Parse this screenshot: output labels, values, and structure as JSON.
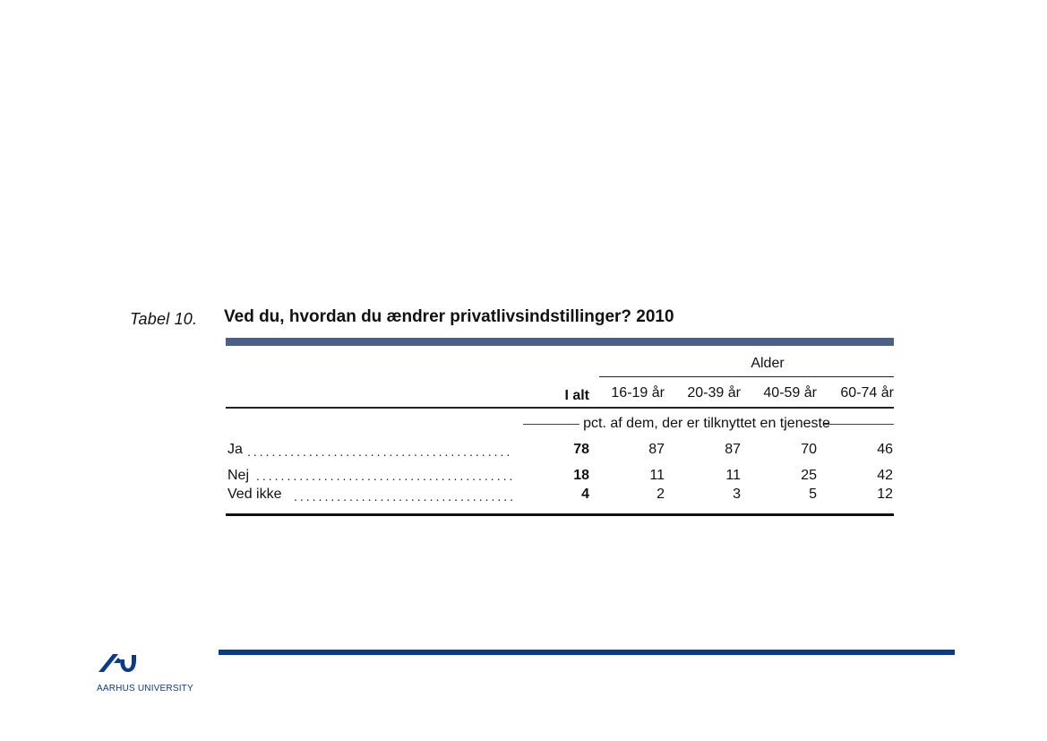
{
  "caption": {
    "label": "Tabel 10.",
    "title": "Ved du, hvordan du ændrer privatlivsindstillinger? 2010"
  },
  "table": {
    "group_header": "Alder",
    "columns": [
      "I alt",
      "16-19 år",
      "20-39 år",
      "40-59 år",
      "60-74 år"
    ],
    "unit_note": "pct. af dem, der er tilknyttet en tjeneste",
    "rows": [
      {
        "label": "Ja",
        "values": [
          "78",
          "87",
          "87",
          "70",
          "46"
        ]
      },
      {
        "label": "Nej",
        "values": [
          "18",
          "11",
          "11",
          "25",
          "42"
        ]
      },
      {
        "label": "Ved ikke",
        "values": [
          "4",
          "2",
          "3",
          "5",
          "12"
        ]
      }
    ]
  },
  "footer": {
    "logo_text": "AARHUS UNIVERSITY"
  },
  "colors": {
    "table_rule": "#4c5f86",
    "footer_rule": "#0b3b82",
    "logo": "#0b3b82"
  }
}
